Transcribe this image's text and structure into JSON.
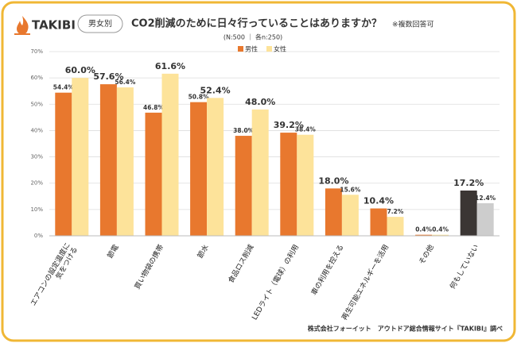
{
  "header": {
    "logo": "TAKIBI",
    "badge": "男女別",
    "title": "CO2削減のために日々行っていることはありますか？",
    "note": "※複数回答可"
  },
  "chart_data": {
    "type": "bar",
    "subtitle": "(N:500 ｜ 各n:250)",
    "categories": [
      "エアコンの設定温度に\n気をつける",
      "節電",
      "買い物袋の携帯",
      "節水",
      "食品ロス削減",
      "LEDライト（電球）の利用",
      "車の利用を控える",
      "再生可能エネルギーを活用",
      "その他",
      "何もしていない"
    ],
    "series": [
      {
        "name": "男性",
        "color": "#e8782e",
        "values": [
          54.4,
          57.6,
          46.8,
          50.8,
          38.0,
          39.2,
          18.0,
          10.4,
          0.4,
          17.2
        ],
        "value_labels": [
          "54.4%",
          "57.6%",
          "46.8%",
          "50.8%",
          "38.0%",
          "39.2%",
          "18.0%",
          "10.4%",
          "0.4%",
          "17.2%"
        ]
      },
      {
        "name": "女性",
        "color": "#fde39a",
        "values": [
          60.0,
          56.4,
          61.6,
          52.4,
          48.0,
          38.4,
          15.6,
          7.2,
          0.4,
          12.4
        ],
        "value_labels": [
          "60.0%",
          "56.4%",
          "61.6%",
          "52.4%",
          "48.0%",
          "38.4%",
          "15.6%",
          "7.2%",
          "0.4%",
          "12.4%"
        ]
      }
    ],
    "emphasis": {
      "category": 9,
      "colors": [
        "#3b3634",
        "#cdcdcd"
      ]
    },
    "ylim": [
      0,
      70
    ],
    "yticks": [
      {
        "value": 0,
        "label": "0%"
      },
      {
        "value": 10,
        "label": "10%"
      },
      {
        "value": 20,
        "label": "20%"
      },
      {
        "value": 30,
        "label": "30%"
      },
      {
        "value": 40,
        "label": "40%"
      },
      {
        "value": 50,
        "label": "50%"
      },
      {
        "value": 60,
        "label": "60%"
      },
      {
        "value": 70,
        "label": "70%"
      }
    ],
    "grid": true,
    "source": "株式会社フォーイット　アウトドア総合情報サイト『TAKIBI』調べ"
  }
}
